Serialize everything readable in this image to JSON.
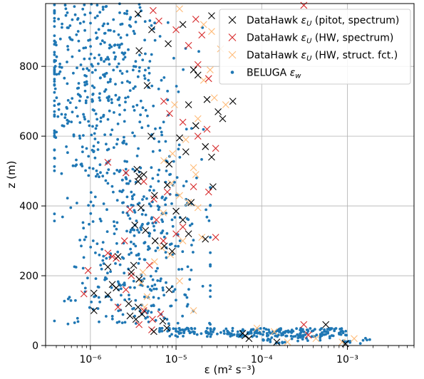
{
  "chart_data": {
    "type": "scatter",
    "x_scale": "log",
    "xlim": [
      3e-07,
      0.006
    ],
    "ylim": [
      0,
      980
    ],
    "grid": true,
    "legend_placement": "top-right",
    "xlabel": "ε (m² s⁻³)",
    "ylabel": "z (m)",
    "x_tick_labels": [
      {
        "value": 1e-06,
        "label": "10⁻⁶"
      },
      {
        "value": 1e-05,
        "label": "10⁻⁵"
      },
      {
        "value": 0.0001,
        "label": "10⁻⁴"
      },
      {
        "value": 0.001,
        "label": "10⁻³"
      }
    ],
    "y_ticks": [
      0,
      200,
      400,
      600,
      800
    ],
    "colors": {
      "pitot": "#000000",
      "hw_spectrum": "#d62728",
      "hw_struct": "#ffbb78",
      "beluga": "#1f77b4"
    },
    "series": [
      {
        "name": "DataHawk εU (pitot, spectrum)",
        "marker": "x",
        "color": "#000000",
        "points": [
          [
            3.6e-06,
            950
          ],
          [
            5.2e-06,
            905
          ],
          [
            8.1e-06,
            865
          ],
          [
            1.2e-05,
            920
          ],
          [
            2.6e-05,
            945
          ],
          [
            3.7e-06,
            845
          ],
          [
            1.6e-05,
            790
          ],
          [
            1.8e-05,
            775
          ],
          [
            4.6e-06,
            745
          ],
          [
            2.3e-05,
            705
          ],
          [
            1.4e-05,
            690
          ],
          [
            3.1e-05,
            670
          ],
          [
            3.5e-05,
            650
          ],
          [
            1.7e-05,
            630
          ],
          [
            4.6e-05,
            700
          ],
          [
            5.1e-06,
            600
          ],
          [
            1.1e-05,
            595
          ],
          [
            2.2e-05,
            570
          ],
          [
            1.3e-05,
            555
          ],
          [
            2.6e-05,
            540
          ],
          [
            8.3e-06,
            520
          ],
          [
            3.5e-06,
            505
          ],
          [
            4.2e-06,
            490
          ],
          [
            3.6e-06,
            470
          ],
          [
            3.7e-06,
            485
          ],
          [
            7.9e-06,
            460
          ],
          [
            2.7e-05,
            455
          ],
          [
            5.6e-06,
            430
          ],
          [
            1.5e-05,
            410
          ],
          [
            3.9e-06,
            395
          ],
          [
            1e-05,
            385
          ],
          [
            1.2e-05,
            360
          ],
          [
            3.3e-06,
            345
          ],
          [
            4.4e-06,
            330
          ],
          [
            1.4e-05,
            320
          ],
          [
            2.2e-05,
            305
          ],
          [
            5.7e-06,
            300
          ],
          [
            7.3e-06,
            285
          ],
          [
            9e-06,
            270
          ],
          [
            2.1e-06,
            255
          ],
          [
            1.6e-06,
            225
          ],
          [
            3e-06,
            210
          ],
          [
            3.7e-06,
            190
          ],
          [
            1.8e-06,
            175
          ],
          [
            8.3e-06,
            160
          ],
          [
            1.6e-06,
            145
          ],
          [
            2.8e-06,
            120
          ],
          [
            3.6e-06,
            110
          ],
          [
            1.1e-06,
            100
          ],
          [
            4e-06,
            90
          ],
          [
            2.9e-06,
            85
          ],
          [
            3.4e-06,
            75
          ],
          [
            7e-06,
            70
          ],
          [
            7.8e-06,
            50
          ],
          [
            5.5e-06,
            40
          ],
          [
            6e-05,
            35
          ],
          [
            6.4e-05,
            28
          ],
          [
            7.1e-05,
            20
          ],
          [
            0.00015,
            10
          ],
          [
            0.00056,
            60
          ],
          [
            0.00095,
            5
          ],
          [
            1.1e-06,
            150
          ],
          [
            2e-06,
            165
          ],
          [
            3.2e-06,
            230
          ]
        ]
      },
      {
        "name": "DataHawk εU (HW, spectrum)",
        "marker": "x",
        "color": "#d62728",
        "points": [
          [
            5.4e-06,
            960
          ],
          [
            6.3e-06,
            930
          ],
          [
            1e-05,
            905
          ],
          [
            1.7e-05,
            935
          ],
          [
            2e-05,
            890
          ],
          [
            1.4e-05,
            860
          ],
          [
            1.8e-05,
            805
          ],
          [
            2.4e-05,
            765
          ],
          [
            7.2e-06,
            700
          ],
          [
            1.2e-05,
            640
          ],
          [
            8.4e-06,
            665
          ],
          [
            1.8e-05,
            600
          ],
          [
            2.3e-05,
            620
          ],
          [
            2.9e-05,
            565
          ],
          [
            1.6e-06,
            525
          ],
          [
            2.6e-06,
            495
          ],
          [
            4.2e-06,
            470
          ],
          [
            7.9e-06,
            440
          ],
          [
            5.5e-06,
            420
          ],
          [
            1.6e-05,
            455
          ],
          [
            2.4e-05,
            440
          ],
          [
            2.9e-06,
            390
          ],
          [
            5.9e-06,
            360
          ],
          [
            1.2e-05,
            340
          ],
          [
            2.9e-05,
            310
          ],
          [
            1e-05,
            320
          ],
          [
            7.1e-06,
            300
          ],
          [
            2.5e-06,
            300
          ],
          [
            1.6e-06,
            265
          ],
          [
            1.8e-06,
            255
          ],
          [
            2e-06,
            250
          ],
          [
            4.9e-06,
            230
          ],
          [
            9.4e-07,
            215
          ],
          [
            3e-06,
            200
          ],
          [
            2.6e-06,
            160
          ],
          [
            8.4e-07,
            148
          ],
          [
            2.1e-06,
            110
          ],
          [
            4.2e-06,
            100
          ],
          [
            6.6e-06,
            90
          ],
          [
            5.3e-06,
            75
          ],
          [
            5.2e-06,
            45
          ],
          [
            3.7e-06,
            60
          ],
          [
            0.00031,
            60
          ],
          [
            0.00031,
            975
          ],
          [
            0.00035,
            30
          ]
        ]
      },
      {
        "name": "DataHawk εU (HW, struct. fct.)",
        "marker": "x",
        "color": "#ffbb78",
        "points": [
          [
            1.1e-05,
            965
          ],
          [
            2.1e-05,
            920
          ],
          [
            2.6e-05,
            900
          ],
          [
            3.3e-05,
            850
          ],
          [
            2.5e-05,
            790
          ],
          [
            2.1e-05,
            760
          ],
          [
            2.8e-05,
            710
          ],
          [
            3.8e-05,
            690
          ],
          [
            9.6e-06,
            690
          ],
          [
            1.8e-05,
            650
          ],
          [
            1.3e-05,
            590
          ],
          [
            9.1e-06,
            550
          ],
          [
            7.2e-06,
            530
          ],
          [
            1.6e-05,
            510
          ],
          [
            1.7e-05,
            490
          ],
          [
            8.8e-06,
            465
          ],
          [
            1.1e-05,
            430
          ],
          [
            1.4e-05,
            410
          ],
          [
            1.8e-05,
            395
          ],
          [
            7.1e-06,
            380
          ],
          [
            2e-05,
            310
          ],
          [
            1.2e-05,
            300
          ],
          [
            6.8e-06,
            280
          ],
          [
            8.6e-06,
            260
          ],
          [
            5.6e-06,
            240
          ],
          [
            4.1e-06,
            210
          ],
          [
            3.9e-06,
            180
          ],
          [
            4.6e-06,
            140
          ],
          [
            4.3e-06,
            110
          ],
          [
            1.1e-05,
            185
          ],
          [
            1.6e-05,
            100
          ],
          [
            8.8e-05,
            50
          ],
          [
            0.00014,
            40
          ],
          [
            0.0002,
            10
          ],
          [
            0.0012,
            20
          ],
          [
            0.00043,
            20
          ],
          [
            0.00087,
            10
          ]
        ]
      },
      {
        "name": "BELUGA εw",
        "marker": "o",
        "color": "#1f77b4"
      }
    ]
  },
  "legend": {
    "items": [
      {
        "marker": "x",
        "color": "#000000",
        "prefix": "DataHawk ",
        "sym": "ε",
        "sub": "U",
        "suffix": " (pitot, spectrum)"
      },
      {
        "marker": "x",
        "color": "#d62728",
        "prefix": "DataHawk ",
        "sym": "ε",
        "sub": "U",
        "suffix": " (HW, spectrum)"
      },
      {
        "marker": "x",
        "color": "#ffbb78",
        "prefix": "DataHawk ",
        "sym": "ε",
        "sub": "U",
        "suffix": " (HW, struct. fct.)"
      },
      {
        "marker": "o",
        "color": "#1f77b4",
        "prefix": "BELUGA ",
        "sym": "ε",
        "sub": "w",
        "suffix": ""
      }
    ]
  }
}
